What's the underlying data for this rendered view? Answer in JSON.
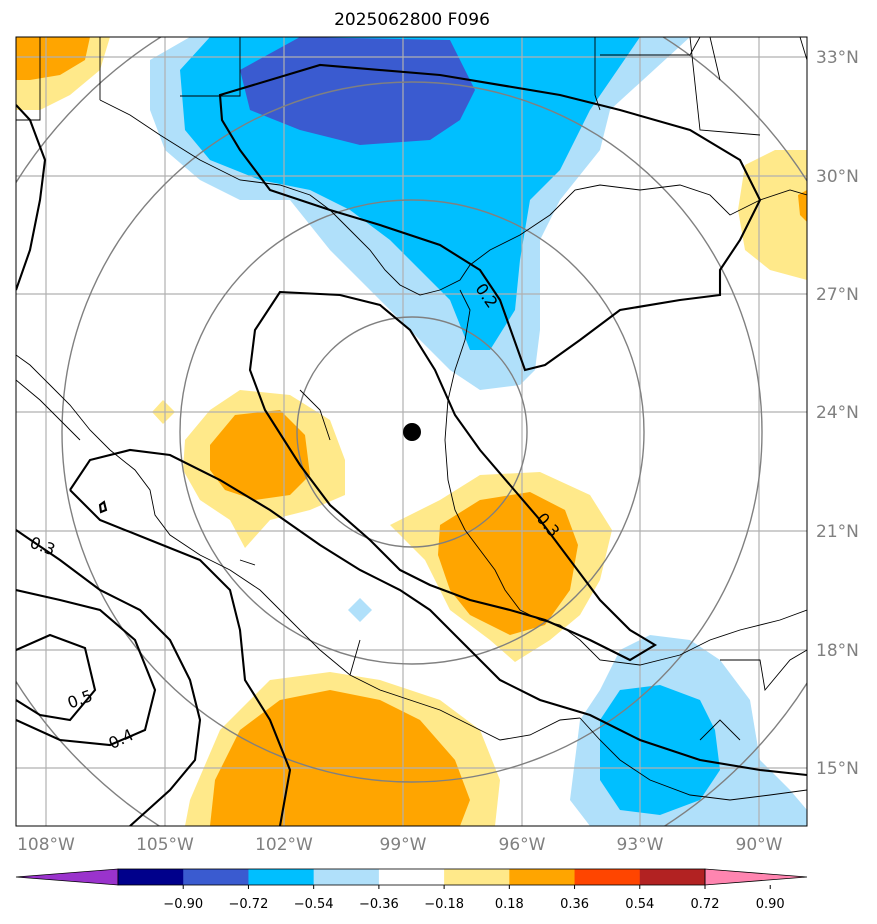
{
  "title": "2025062800 F096",
  "axes": {
    "lon_labels": [
      "108°W",
      "105°W",
      "102°W",
      "99°W",
      "96°W",
      "93°W",
      "90°W"
    ],
    "lat_labels": [
      "33°N",
      "30°N",
      "27°N",
      "24°N",
      "21°N",
      "18°N",
      "15°N"
    ]
  },
  "contour_labels": [
    "0.2",
    "0.3",
    "0.3",
    "0.5",
    "0.4"
  ],
  "colorbar": {
    "ticks": [
      "−0.90",
      "−0.72",
      "−0.54",
      "−0.36",
      "−0.18",
      "0.18",
      "0.36",
      "0.54",
      "0.72",
      "0.90"
    ],
    "colors": [
      "#9a33cc",
      "#00008b",
      "#3a5bd0",
      "#00bfff",
      "#b0e0fa",
      "#ffffff",
      "#ffe98a",
      "#ffa500",
      "#ff4500",
      "#b22222",
      "#ff85b0"
    ]
  },
  "map_features": {
    "center_marker": "storm-center-dot",
    "shading_colors": {
      "light_blue": "#b0e0fa",
      "blue": "#00bfff",
      "dark_blue": "#3a5bd0",
      "light_yellow": "#ffe98a",
      "orange": "#ffa500"
    }
  }
}
